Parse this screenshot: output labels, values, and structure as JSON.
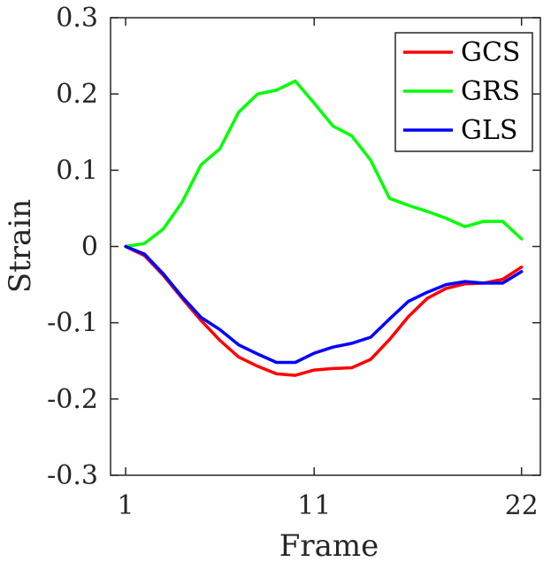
{
  "chart_data": {
    "type": "line",
    "xlabel": "Frame",
    "ylabel": "Strain",
    "xlim": [
      0.2,
      23
    ],
    "ylim": [
      -0.3,
      0.3
    ],
    "xticks": [
      1,
      11,
      22
    ],
    "yticks": [
      0.3,
      0.2,
      0.1,
      0,
      -0.1,
      -0.2,
      -0.3
    ],
    "ytick_labels": [
      "0.3",
      "0.2",
      "0.1",
      "0",
      "-0.1",
      "-0.2",
      "-0.3"
    ],
    "legend_position": "top-right",
    "grid": false,
    "x": [
      1,
      2,
      3,
      4,
      5,
      6,
      7,
      8,
      9,
      10,
      11,
      12,
      13,
      14,
      15,
      16,
      17,
      18,
      19,
      20,
      21,
      22
    ],
    "series": [
      {
        "name": "GCS",
        "color": "#ff0000",
        "values": [
          0.0,
          -0.012,
          -0.038,
          -0.068,
          -0.097,
          -0.123,
          -0.145,
          -0.157,
          -0.167,
          -0.169,
          -0.162,
          -0.16,
          -0.159,
          -0.148,
          -0.122,
          -0.092,
          -0.068,
          -0.055,
          -0.049,
          -0.048,
          -0.043,
          -0.027
        ]
      },
      {
        "name": "GRS",
        "color": "#00ff00",
        "values": [
          0.0,
          0.004,
          0.023,
          0.058,
          0.107,
          0.128,
          0.176,
          0.2,
          0.205,
          0.217,
          0.188,
          0.158,
          0.145,
          0.113,
          0.063,
          0.054,
          0.046,
          0.037,
          0.026,
          0.033,
          0.033,
          0.01
        ]
      },
      {
        "name": "GLS",
        "color": "#0000ff",
        "values": [
          0.0,
          -0.01,
          -0.036,
          -0.066,
          -0.093,
          -0.109,
          -0.129,
          -0.141,
          -0.152,
          -0.152,
          -0.14,
          -0.132,
          -0.127,
          -0.119,
          -0.095,
          -0.072,
          -0.06,
          -0.05,
          -0.046,
          -0.048,
          -0.048,
          -0.033
        ]
      }
    ]
  }
}
